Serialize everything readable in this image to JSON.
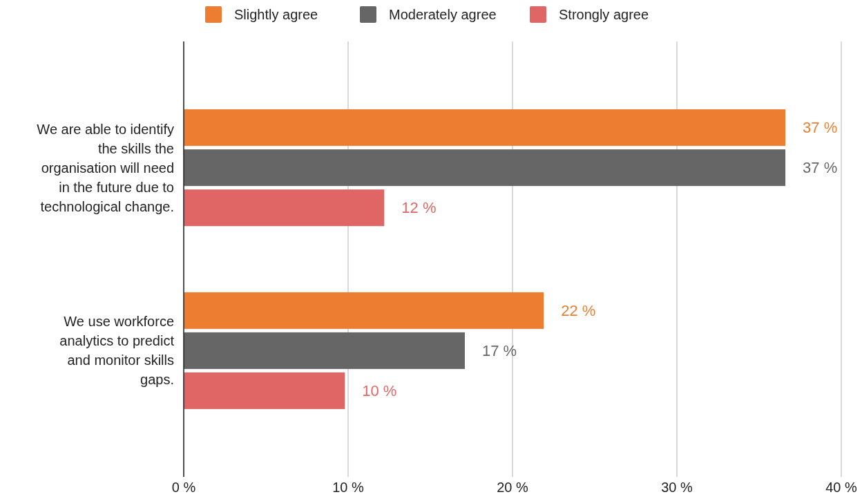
{
  "chart_data": {
    "type": "bar",
    "orientation": "horizontal",
    "categories": [
      "We are able to identify the skills the organisation will need in the future due to technological change.",
      "We use workforce analytics to predict and monitor skills gaps."
    ],
    "series": [
      {
        "name": "Slightly agree",
        "color": "#ed7d31",
        "values": [
          36.6,
          21.9
        ],
        "value_labels": [
          "37 %",
          "22 %"
        ]
      },
      {
        "name": "Moderately agree",
        "color": "#666666",
        "values": [
          36.6,
          17.1
        ],
        "value_labels": [
          "37 %",
          "17 %"
        ]
      },
      {
        "name": "Strongly agree",
        "color": "#e06666",
        "values": [
          12.2,
          9.8
        ],
        "value_labels": [
          "12 %",
          "10 %"
        ]
      }
    ],
    "xlim": [
      0,
      40
    ],
    "xticks": [
      {
        "value": 0,
        "label": "0 %"
      },
      {
        "value": 10,
        "label": "10 %"
      },
      {
        "value": 20,
        "label": "20 %"
      },
      {
        "value": 30,
        "label": "30 %"
      },
      {
        "value": 40,
        "label": "40 %"
      }
    ],
    "grid": "x",
    "legend": "top"
  }
}
